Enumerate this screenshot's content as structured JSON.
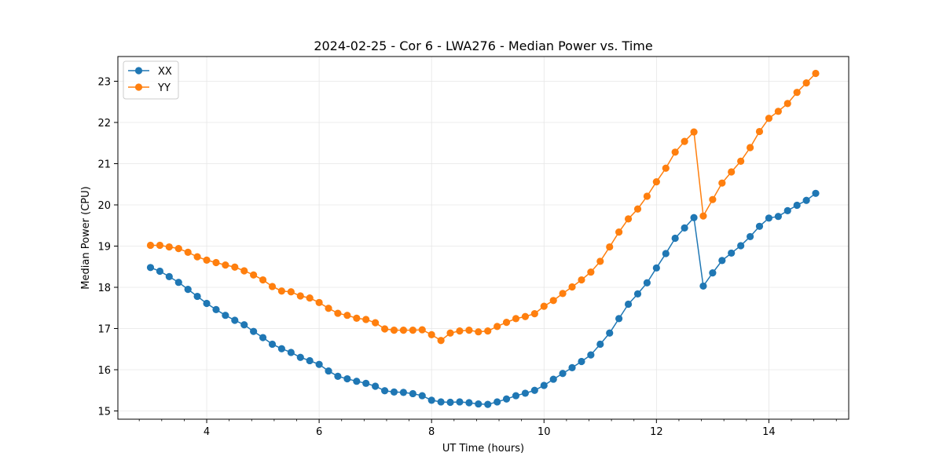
{
  "chart_data": {
    "type": "line",
    "title": "2024-02-25 - Cor 6 - LWA276 - Median Power vs. Time",
    "xlabel": "UT Time (hours)",
    "ylabel": "Median Power (CPU)",
    "xlim": [
      2.42,
      15.42
    ],
    "ylim": [
      14.8,
      23.6
    ],
    "xticks": [
      4,
      6,
      8,
      10,
      12,
      14
    ],
    "yticks": [
      15,
      16,
      17,
      18,
      19,
      20,
      21,
      22,
      23
    ],
    "grid": true,
    "legend_position": "top-left",
    "x": [
      3.0,
      3.167,
      3.333,
      3.5,
      3.667,
      3.833,
      4.0,
      4.167,
      4.333,
      4.5,
      4.667,
      4.833,
      5.0,
      5.167,
      5.333,
      5.5,
      5.667,
      5.833,
      6.0,
      6.167,
      6.333,
      6.5,
      6.667,
      6.833,
      7.0,
      7.167,
      7.333,
      7.5,
      7.667,
      7.833,
      8.0,
      8.167,
      8.333,
      8.5,
      8.667,
      8.833,
      9.0,
      9.167,
      9.333,
      9.5,
      9.667,
      9.833,
      10.0,
      10.167,
      10.333,
      10.5,
      10.667,
      10.833,
      11.0,
      11.167,
      11.333,
      11.5,
      11.667,
      11.833,
      12.0,
      12.167,
      12.333,
      12.5,
      12.667,
      12.833,
      13.0,
      13.167,
      13.333,
      13.5,
      13.667,
      13.833,
      14.0,
      14.167,
      14.333,
      14.5,
      14.667,
      14.833
    ],
    "series": [
      {
        "name": "XX",
        "color": "#1f77b4",
        "values": [
          18.48,
          18.39,
          18.26,
          18.12,
          17.95,
          17.78,
          17.61,
          17.46,
          17.32,
          17.2,
          17.09,
          16.93,
          16.78,
          16.62,
          16.51,
          16.42,
          16.3,
          16.22,
          16.13,
          15.97,
          15.84,
          15.78,
          15.72,
          15.67,
          15.6,
          15.49,
          15.46,
          15.45,
          15.42,
          15.37,
          15.26,
          15.22,
          15.21,
          15.22,
          15.2,
          15.17,
          15.16,
          15.22,
          15.29,
          15.37,
          15.43,
          15.5,
          15.62,
          15.77,
          15.91,
          16.05,
          16.2,
          16.36,
          16.62,
          16.89,
          17.24,
          17.59,
          17.84,
          18.11,
          18.47,
          18.82,
          19.19,
          19.44,
          19.69,
          18.03,
          18.35,
          18.65,
          18.83,
          19.01,
          19.23,
          19.48,
          19.68,
          19.72,
          19.86,
          19.99,
          20.11,
          20.28
        ]
      },
      {
        "name": "YY",
        "color": "#ff7f0e",
        "values": [
          19.02,
          19.02,
          18.98,
          18.94,
          18.85,
          18.74,
          18.66,
          18.6,
          18.54,
          18.49,
          18.4,
          18.3,
          18.18,
          18.02,
          17.91,
          17.89,
          17.79,
          17.74,
          17.63,
          17.49,
          17.37,
          17.32,
          17.25,
          17.22,
          17.14,
          16.99,
          16.96,
          16.96,
          16.96,
          16.97,
          16.85,
          16.71,
          16.89,
          16.94,
          16.96,
          16.92,
          16.94,
          17.05,
          17.15,
          17.24,
          17.29,
          17.36,
          17.54,
          17.68,
          17.85,
          18.01,
          18.18,
          18.37,
          18.63,
          18.98,
          19.34,
          19.66,
          19.9,
          20.21,
          20.56,
          20.89,
          21.28,
          21.54,
          21.77,
          19.73,
          20.13,
          20.53,
          20.8,
          21.06,
          21.39,
          21.78,
          22.1,
          22.27,
          22.46,
          22.73,
          22.96,
          23.19
        ]
      }
    ]
  }
}
